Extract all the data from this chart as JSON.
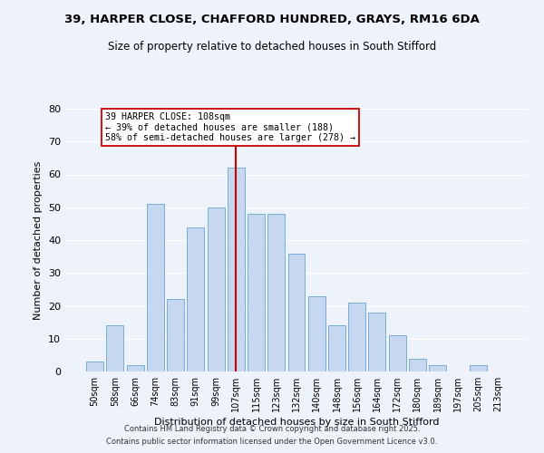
{
  "title_line1": "39, HARPER CLOSE, CHAFFORD HUNDRED, GRAYS, RM16 6DA",
  "title_line2": "Size of property relative to detached houses in South Stifford",
  "xlabel": "Distribution of detached houses by size in South Stifford",
  "ylabel": "Number of detached properties",
  "bar_labels": [
    "50sqm",
    "58sqm",
    "66sqm",
    "74sqm",
    "83sqm",
    "91sqm",
    "99sqm",
    "107sqm",
    "115sqm",
    "123sqm",
    "132sqm",
    "140sqm",
    "148sqm",
    "156sqm",
    "164sqm",
    "172sqm",
    "180sqm",
    "189sqm",
    "197sqm",
    "205sqm",
    "213sqm"
  ],
  "bar_values": [
    3,
    14,
    2,
    51,
    22,
    44,
    50,
    62,
    48,
    48,
    36,
    23,
    14,
    21,
    18,
    11,
    4,
    2,
    0,
    2,
    0
  ],
  "bar_color": "#c5d8f0",
  "bar_edge_color": "#7aaed6",
  "background_color": "#eef2fb",
  "grid_color": "#ffffff",
  "vline_color": "#cc0000",
  "annotation_title": "39 HARPER CLOSE: 108sqm",
  "annotation_line1": "← 39% of detached houses are smaller (188)",
  "annotation_line2": "58% of semi-detached houses are larger (278) →",
  "annotation_box_color": "#ffffff",
  "annotation_box_edge": "#cc0000",
  "ylim": [
    0,
    80
  ],
  "yticks": [
    0,
    10,
    20,
    30,
    40,
    50,
    60,
    70,
    80
  ],
  "footer_line1": "Contains HM Land Registry data © Crown copyright and database right 2025.",
  "footer_line2": "Contains public sector information licensed under the Open Government Licence v3.0."
}
